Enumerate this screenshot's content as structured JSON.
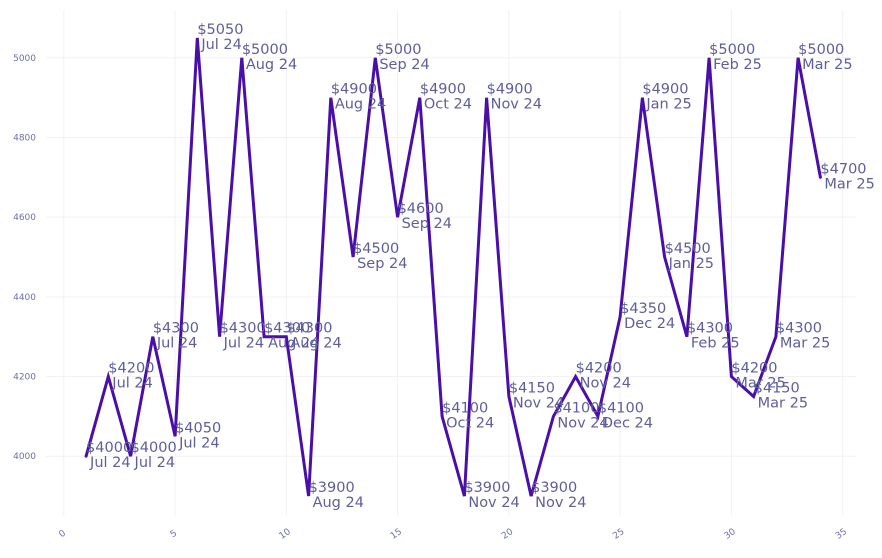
{
  "chart_data": {
    "type": "line",
    "title": "",
    "xlabel": "",
    "ylabel": "",
    "xlim": [
      -0.8,
      35.6
    ],
    "ylim": [
      3850,
      5120
    ],
    "xticks": [
      0,
      5,
      10,
      15,
      20,
      25,
      30,
      35
    ],
    "yticks": [
      4000,
      4200,
      4400,
      4600,
      4800,
      5000
    ],
    "grid": true,
    "legend": "none",
    "line_color": "#4a0fa8",
    "series": [
      {
        "points": [
          {
            "x": 1,
            "y": 4000,
            "price": "$4000",
            "date": "Jul 24"
          },
          {
            "x": 2,
            "y": 4200,
            "price": "$4200",
            "date": "Jul 24"
          },
          {
            "x": 3,
            "y": 4000,
            "price": "$4000",
            "date": "Jul 24"
          },
          {
            "x": 4,
            "y": 4300,
            "price": "$4300",
            "date": "Jul 24"
          },
          {
            "x": 5,
            "y": 4050,
            "price": "$4050",
            "date": "Jul 24"
          },
          {
            "x": 6,
            "y": 5050,
            "price": "$5050",
            "date": "Jul 24"
          },
          {
            "x": 7,
            "y": 4300,
            "price": "$4300",
            "date": "Jul 24"
          },
          {
            "x": 8,
            "y": 5000,
            "price": "$5000",
            "date": "Aug 24"
          },
          {
            "x": 9,
            "y": 4300,
            "price": "$4300",
            "date": "Aug 24"
          },
          {
            "x": 10,
            "y": 4300,
            "price": "$4300",
            "date": "Aug 24"
          },
          {
            "x": 11,
            "y": 3900,
            "price": "$3900",
            "date": "Aug 24"
          },
          {
            "x": 12,
            "y": 4900,
            "price": "$4900",
            "date": "Aug 24"
          },
          {
            "x": 13,
            "y": 4500,
            "price": "$4500",
            "date": "Sep 24"
          },
          {
            "x": 14,
            "y": 5000,
            "price": "$5000",
            "date": "Sep 24"
          },
          {
            "x": 15,
            "y": 4600,
            "price": "$4600",
            "date": "Sep 24"
          },
          {
            "x": 16,
            "y": 4900,
            "price": "$4900",
            "date": "Oct 24"
          },
          {
            "x": 17,
            "y": 4100,
            "price": "$4100",
            "date": "Oct 24"
          },
          {
            "x": 18,
            "y": 3900,
            "price": "$3900",
            "date": "Nov 24"
          },
          {
            "x": 19,
            "y": 4900,
            "price": "$4900",
            "date": "Nov 24"
          },
          {
            "x": 20,
            "y": 4150,
            "price": "$4150",
            "date": "Nov 24"
          },
          {
            "x": 21,
            "y": 3900,
            "price": "$3900",
            "date": "Nov 24"
          },
          {
            "x": 22,
            "y": 4100,
            "price": "$4100",
            "date": "Nov 24"
          },
          {
            "x": 23,
            "y": 4200,
            "price": "$4200",
            "date": "Nov 24"
          },
          {
            "x": 24,
            "y": 4100,
            "price": "$4100",
            "date": "Dec 24"
          },
          {
            "x": 25,
            "y": 4350,
            "price": "$4350",
            "date": "Dec 24"
          },
          {
            "x": 26,
            "y": 4900,
            "price": "$4900",
            "date": "Jan 25"
          },
          {
            "x": 27,
            "y": 4500,
            "price": "$4500",
            "date": "Jan 25"
          },
          {
            "x": 28,
            "y": 4300,
            "price": "$4300",
            "date": "Feb 25"
          },
          {
            "x": 29,
            "y": 5000,
            "price": "$5000",
            "date": "Feb 25"
          },
          {
            "x": 30,
            "y": 4200,
            "price": "$4200",
            "date": "Mar 25"
          },
          {
            "x": 31,
            "y": 4150,
            "price": "$4150",
            "date": "Mar 25"
          },
          {
            "x": 32,
            "y": 4300,
            "price": "$4300",
            "date": "Mar 25"
          },
          {
            "x": 33,
            "y": 5000,
            "price": "$5000",
            "date": "Mar 25"
          },
          {
            "x": 34,
            "y": 4700,
            "price": "$4700",
            "date": "Mar 25"
          }
        ]
      }
    ]
  }
}
